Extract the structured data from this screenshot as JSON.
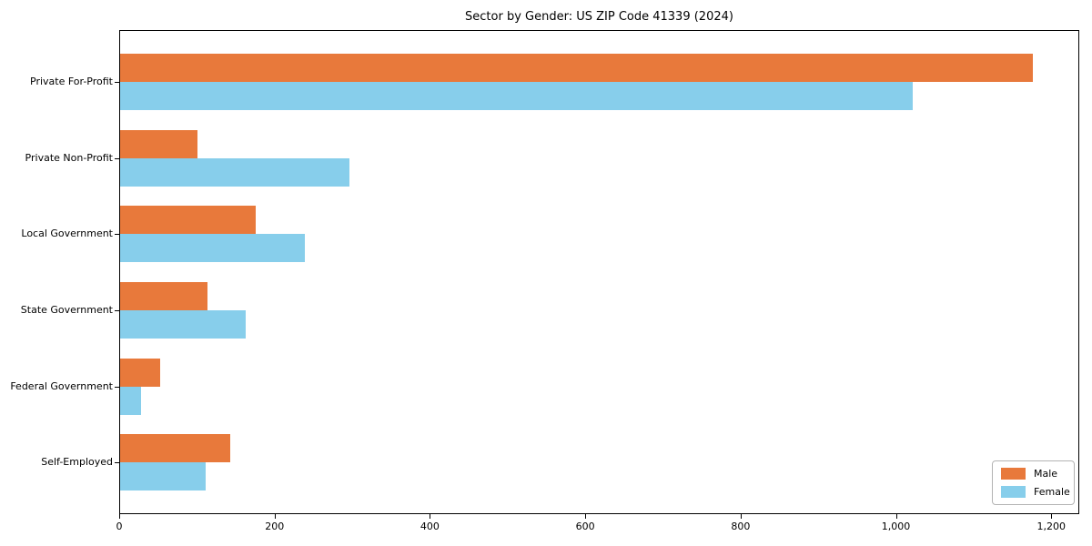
{
  "chart_data": {
    "type": "bar",
    "orientation": "horizontal",
    "title": "Sector by Gender: US ZIP Code 41339 (2024)",
    "categories": [
      "Private For-Profit",
      "Private Non-Profit",
      "Local Government",
      "State Government",
      "Federal Government",
      "Self-Employed"
    ],
    "series": [
      {
        "name": "Male",
        "color": "#E8793B",
        "values": [
          1175,
          100,
          175,
          112,
          52,
          142
        ]
      },
      {
        "name": "Female",
        "color": "#87CEEB",
        "values": [
          1020,
          295,
          238,
          162,
          27,
          110
        ]
      }
    ],
    "xlim": [
      0,
      1236
    ],
    "xticks": [
      0,
      200,
      400,
      600,
      800,
      1000,
      1200
    ],
    "xtick_labels": [
      "0",
      "200",
      "400",
      "600",
      "800",
      "1,000",
      "1,200"
    ],
    "xlabel": "",
    "ylabel": "",
    "grid": false,
    "legend_position": "lower right",
    "plot_background": "#ffffff",
    "spine_color": "#000000"
  }
}
